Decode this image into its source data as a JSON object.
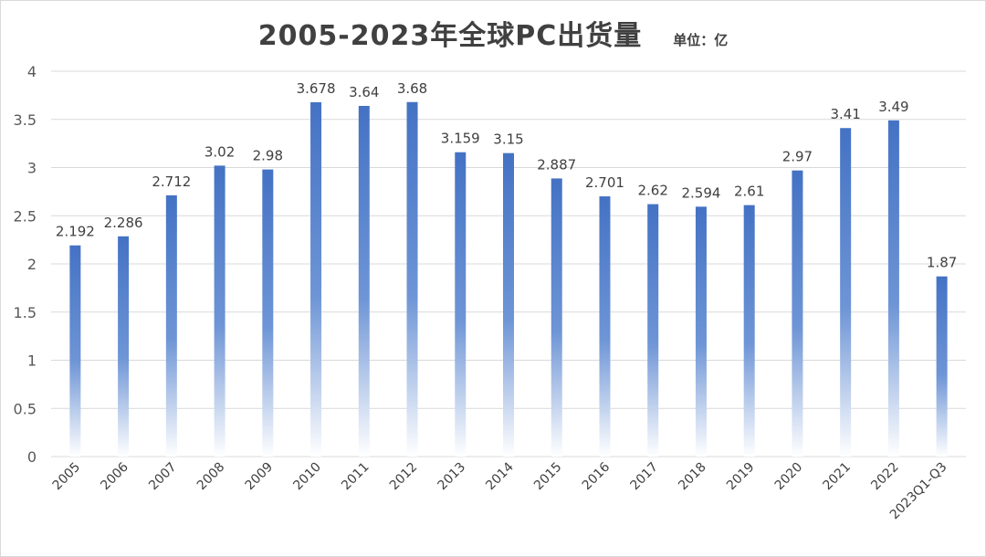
{
  "chart_data": {
    "type": "bar",
    "title": "2005-2023年全球PC出货量",
    "unit_label": "单位：亿",
    "categories": [
      "2005",
      "2006",
      "2007",
      "2008",
      "2009",
      "2010",
      "2011",
      "2012",
      "2013",
      "2014",
      "2015",
      "2016",
      "2017",
      "2018",
      "2019",
      "2020",
      "2021",
      "2022",
      "2023Q1-Q3"
    ],
    "values": [
      2.192,
      2.286,
      2.712,
      3.02,
      2.98,
      3.678,
      3.64,
      3.68,
      3.159,
      3.15,
      2.887,
      2.701,
      2.62,
      2.594,
      2.61,
      2.97,
      3.41,
      3.49,
      1.87
    ],
    "data_labels": [
      "2.192",
      "2.286",
      "2.712",
      "3.02",
      "2.98",
      "3.678",
      "3.64",
      "3.68",
      "3.159",
      "3.15",
      "2.887",
      "2.701",
      "2.62",
      "2.594",
      "2.61",
      "2.97",
      "3.41",
      "3.49",
      "1.87"
    ],
    "ylim": [
      0,
      4
    ],
    "yticks": [
      "0",
      "0.5",
      "1",
      "1.5",
      "2",
      "2.5",
      "3",
      "3.5",
      "4"
    ],
    "grid": true,
    "legend": "none",
    "bar_color": "#4472c4"
  }
}
